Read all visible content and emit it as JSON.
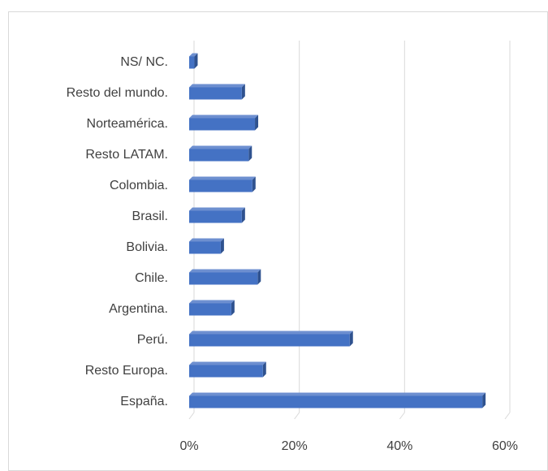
{
  "chart_data": {
    "type": "bar",
    "orientation": "horizontal",
    "categories": [
      "NS/ NC.",
      "Resto del mundo.",
      "Norteamérica.",
      "Resto LATAM.",
      "Colombia.",
      "Brasil.",
      "Bolivia.",
      "Chile.",
      "Argentina.",
      "Perú.",
      "Resto Europa.",
      "España."
    ],
    "values": [
      1,
      10,
      12.5,
      11.3,
      12,
      10,
      6,
      13,
      8,
      30.5,
      14,
      55.7
    ],
    "color": "#4472c4",
    "xlim": [
      0,
      60
    ],
    "xticks": [
      {
        "value": 0,
        "label": "0%"
      },
      {
        "value": 20,
        "label": "20%"
      },
      {
        "value": 40,
        "label": "40%"
      },
      {
        "value": 60,
        "label": "60%"
      }
    ],
    "grid": true
  }
}
